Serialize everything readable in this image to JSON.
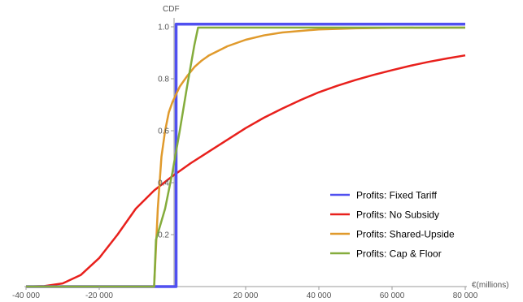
{
  "chart_data": {
    "type": "line",
    "title": "",
    "xlabel": "€(millions)",
    "ylabel": "CDF",
    "xlim": [
      -40000,
      80000
    ],
    "ylim": [
      0,
      1.03
    ],
    "x_ticks": [
      -40000,
      -20000,
      20000,
      40000,
      60000,
      80000
    ],
    "x_tick_labels": [
      "-40 000",
      "-20 000",
      "20 000",
      "40 000",
      "60 000",
      "80 000"
    ],
    "y_ticks": [
      0.2,
      0.4,
      0.6,
      0.8,
      1.0
    ],
    "y_tick_labels": [
      "0.2",
      "0.4",
      "0.6",
      "0.8",
      "1.0"
    ],
    "grid": false,
    "legend_position": "bottom-right",
    "series": [
      {
        "name": "Profits: Fixed Tariff",
        "color": "#5050F0",
        "x": [
          -40000,
          1000,
          1000,
          1000,
          80000
        ],
        "y": [
          0,
          0,
          0.5,
          1.01,
          1.01
        ]
      },
      {
        "name": "Profits: No Subsidy",
        "color": "#E8201C",
        "x": [
          -40000,
          -35000,
          -30000,
          -25000,
          -20000,
          -15000,
          -10000,
          -5000,
          0,
          5000,
          10000,
          15000,
          20000,
          25000,
          30000,
          35000,
          40000,
          45000,
          50000,
          55000,
          60000,
          65000,
          70000,
          75000,
          80000
        ],
        "y": [
          0.0,
          0.002,
          0.012,
          0.045,
          0.11,
          0.2,
          0.3,
          0.37,
          0.425,
          0.475,
          0.52,
          0.565,
          0.61,
          0.65,
          0.685,
          0.718,
          0.748,
          0.773,
          0.795,
          0.815,
          0.833,
          0.85,
          0.865,
          0.878,
          0.89
        ]
      },
      {
        "name": "Profits: Shared-Upside",
        "color": "#E09A2C",
        "x": [
          -40000,
          -5000,
          -4000,
          -3000,
          -2000,
          -1000,
          0,
          2000,
          4000,
          6000,
          8000,
          10000,
          15000,
          20000,
          25000,
          30000,
          40000,
          50000,
          60000,
          80000
        ],
        "y": [
          0,
          0,
          0.3,
          0.5,
          0.6,
          0.67,
          0.71,
          0.77,
          0.81,
          0.845,
          0.87,
          0.89,
          0.925,
          0.95,
          0.967,
          0.978,
          0.99,
          0.994,
          0.996,
          0.997
        ]
      },
      {
        "name": "Profits: Cap & Floor",
        "color": "#84AC3C",
        "x": [
          -40000,
          -5000,
          -4500,
          -2000,
          0,
          2000,
          4000,
          6000,
          7000,
          80000
        ],
        "y": [
          0,
          0,
          0.18,
          0.3,
          0.44,
          0.6,
          0.77,
          0.93,
          0.997,
          0.997
        ]
      }
    ]
  }
}
